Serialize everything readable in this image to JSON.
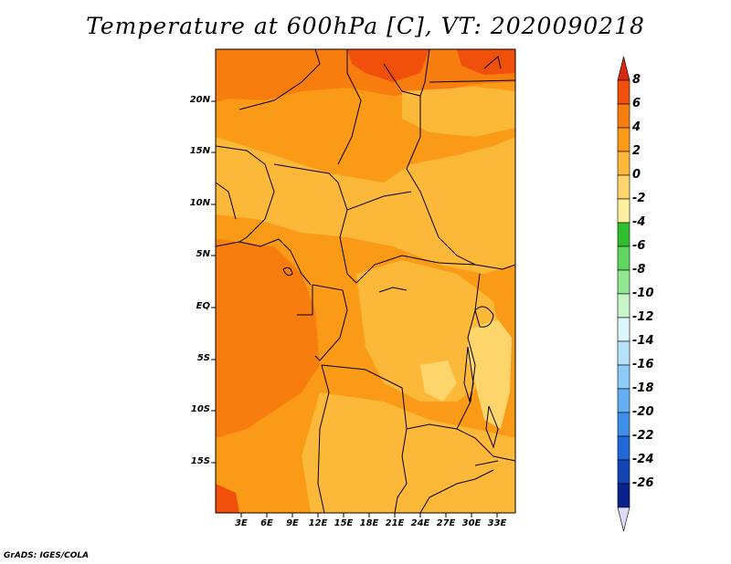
{
  "title": "Temperature at 600hPa [C], VT: 2020090218",
  "footer": "GrADS: IGES/COLA",
  "map": {
    "region": "Central Africa",
    "projection": "lat-lon",
    "lon_range": [
      0,
      35
    ],
    "lat_range": [
      -20,
      25
    ],
    "y_ticks": [
      "20N",
      "15N",
      "10N",
      "5N",
      "EQ",
      "5S",
      "10S",
      "15S"
    ],
    "x_ticks": [
      "3E",
      "6E",
      "9E",
      "12E",
      "15E",
      "18E",
      "21E",
      "24E",
      "27E",
      "30E",
      "33E"
    ],
    "dominant_values": "mostly 0 to 4 C, warmer (4 to 6 C) in north and over Gulf of Guinea, cooler (-2 to 0 C) near East African lakes"
  },
  "colorbar": {
    "labels": [
      "8",
      "6",
      "4",
      "2",
      "0",
      "-2",
      "-4",
      "-6",
      "-8",
      "-10",
      "-12",
      "-14",
      "-16",
      "-18",
      "-20",
      "-22",
      "-24",
      "-26"
    ],
    "colors": [
      "#d62a0f",
      "#f0500c",
      "#f77d0e",
      "#fa9a16",
      "#fcb838",
      "#fdd56a",
      "#fdf0a0",
      "#30bd30",
      "#5fd65f",
      "#92e792",
      "#c8f6c8",
      "#dcf6fc",
      "#b6e3fa",
      "#8ccaf7",
      "#64aef2",
      "#3f8ee8",
      "#2168d8",
      "#1244b4",
      "#0b218a",
      "#dcdcfa"
    ]
  }
}
